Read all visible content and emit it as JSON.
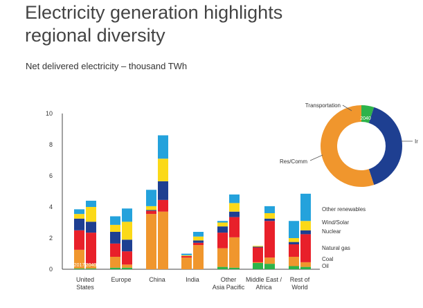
{
  "title": "Electricity generation highlights regional diversity",
  "subtitle": "Net delivered electricity – thousand TWh",
  "chart_data": {
    "type": "bar",
    "stacked": true,
    "grouped_years": [
      "2017",
      "2040"
    ],
    "categories": [
      [
        "United",
        "States"
      ],
      [
        "Europe"
      ],
      [
        "China"
      ],
      [
        "India"
      ],
      [
        "Other",
        "Asia Pacific"
      ],
      [
        "Middle East /",
        "Africa"
      ],
      [
        "Rest of",
        "World"
      ]
    ],
    "ylim": [
      0,
      10
    ],
    "yticks": [
      0,
      2,
      4,
      6,
      8,
      10
    ],
    "series": [
      {
        "name": "Oil",
        "color": "#2db34a",
        "values_2017": [
          0.05,
          0.1,
          0.0,
          0.0,
          0.15,
          0.4,
          0.2
        ],
        "values_2040": [
          0.05,
          0.1,
          0.0,
          0.0,
          0.1,
          0.35,
          0.15
        ]
      },
      {
        "name": "Coal",
        "color": "#f0962d",
        "values_2017": [
          1.2,
          0.7,
          3.55,
          0.75,
          1.2,
          0.05,
          0.6
        ],
        "values_2040": [
          0.3,
          0.2,
          3.7,
          1.55,
          1.95,
          0.4,
          0.3
        ]
      },
      {
        "name": "Natural gas",
        "color": "#e8202a",
        "values_2017": [
          1.25,
          0.85,
          0.2,
          0.1,
          1.0,
          0.95,
          0.8
        ],
        "values_2040": [
          2.0,
          0.85,
          0.75,
          0.15,
          1.3,
          2.35,
          1.8
        ]
      },
      {
        "name": "Nuclear",
        "color": "#1e3f91",
        "values_2017": [
          0.75,
          0.75,
          0.05,
          0.0,
          0.4,
          0.05,
          0.15
        ],
        "values_2040": [
          0.7,
          0.75,
          1.2,
          0.15,
          0.35,
          0.15,
          0.25
        ]
      },
      {
        "name": "Wind/Solar",
        "color": "#fbd918",
        "values_2017": [
          0.3,
          0.45,
          0.25,
          0.05,
          0.25,
          0.05,
          0.25
        ],
        "values_2040": [
          0.95,
          1.15,
          1.45,
          0.25,
          0.55,
          0.35,
          0.6
        ]
      },
      {
        "name": "Other renewables",
        "color": "#24a2dc",
        "values_2017": [
          0.3,
          0.55,
          1.05,
          0.1,
          0.1,
          0.0,
          1.1
        ],
        "values_2040": [
          0.4,
          0.85,
          1.5,
          0.3,
          0.55,
          0.45,
          1.75
        ]
      }
    ],
    "legend": [
      "Other renewables",
      "Wind/Solar",
      "Nuclear",
      "Natural gas",
      "Coal",
      "Oil"
    ],
    "donut": {
      "labels": [
        "Transportation",
        "Res/Comm",
        "Ir"
      ],
      "years": [
        "2040",
        "2017"
      ],
      "slices": [
        {
          "name": "Transportation",
          "color": "#2db34a",
          "share": 0.05
        },
        {
          "name": "Industrial",
          "color": "#1e3f91",
          "share": 0.4
        },
        {
          "name": "Res/Comm",
          "color": "#f0962d",
          "share": 0.55
        }
      ]
    }
  }
}
